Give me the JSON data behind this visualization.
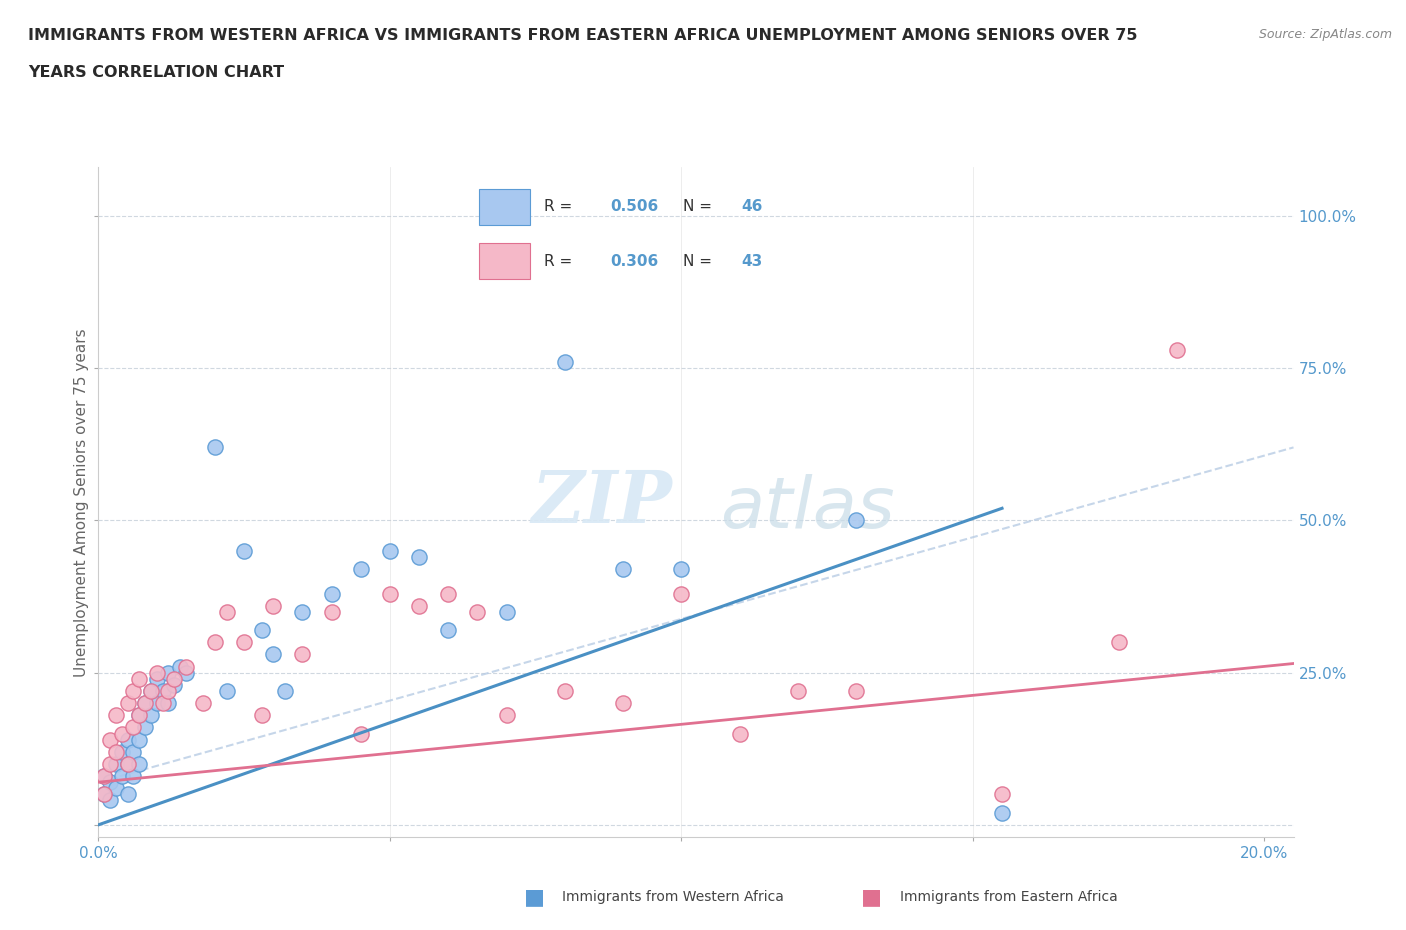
{
  "title_line1": "IMMIGRANTS FROM WESTERN AFRICA VS IMMIGRANTS FROM EASTERN AFRICA UNEMPLOYMENT AMONG SENIORS OVER 75",
  "title_line2": "YEARS CORRELATION CHART",
  "source": "Source: ZipAtlas.com",
  "ylabel": "Unemployment Among Seniors over 75 years",
  "legend_label1": "Immigrants from Western Africa",
  "legend_label2": "Immigrants from Eastern Africa",
  "xlim": [
    0.0,
    0.205
  ],
  "ylim": [
    -0.02,
    1.08
  ],
  "y_ticks": [
    0.0,
    0.25,
    0.5,
    0.75,
    1.0
  ],
  "y_tick_labels": [
    "",
    "25.0%",
    "50.0%",
    "75.0%",
    "100.0%"
  ],
  "x_ticks": [
    0.0,
    0.05,
    0.1,
    0.15,
    0.2
  ],
  "x_tick_labels_show": [
    "0.0%",
    "",
    "",
    "",
    "20.0%"
  ],
  "color_western": "#a8c8f0",
  "color_western_edge": "#5b9bd5",
  "color_eastern": "#f5b8c8",
  "color_eastern_edge": "#e07090",
  "color_western_line": "#4a90c4",
  "color_eastern_line": "#e07090",
  "color_dashed": "#b8cce4",
  "axis_label_color": "#5599cc",
  "grid_color": "#d0d8e0",
  "western_x": [
    0.001,
    0.001,
    0.002,
    0.002,
    0.003,
    0.003,
    0.004,
    0.004,
    0.005,
    0.005,
    0.005,
    0.006,
    0.006,
    0.007,
    0.007,
    0.007,
    0.008,
    0.008,
    0.009,
    0.009,
    0.01,
    0.01,
    0.011,
    0.012,
    0.012,
    0.013,
    0.014,
    0.015,
    0.02,
    0.022,
    0.025,
    0.028,
    0.03,
    0.032,
    0.035,
    0.04,
    0.045,
    0.05,
    0.055,
    0.06,
    0.07,
    0.08,
    0.09,
    0.1,
    0.13,
    0.155
  ],
  "western_y": [
    0.05,
    0.08,
    0.04,
    0.07,
    0.06,
    0.1,
    0.08,
    0.12,
    0.05,
    0.1,
    0.14,
    0.08,
    0.12,
    0.1,
    0.14,
    0.18,
    0.16,
    0.2,
    0.18,
    0.22,
    0.2,
    0.24,
    0.22,
    0.2,
    0.25,
    0.23,
    0.26,
    0.25,
    0.62,
    0.22,
    0.45,
    0.32,
    0.28,
    0.22,
    0.35,
    0.38,
    0.42,
    0.45,
    0.44,
    0.32,
    0.35,
    0.76,
    0.42,
    0.42,
    0.5,
    0.02
  ],
  "eastern_x": [
    0.001,
    0.001,
    0.002,
    0.002,
    0.003,
    0.003,
    0.004,
    0.005,
    0.005,
    0.006,
    0.006,
    0.007,
    0.007,
    0.008,
    0.009,
    0.01,
    0.011,
    0.012,
    0.013,
    0.015,
    0.018,
    0.02,
    0.022,
    0.025,
    0.028,
    0.03,
    0.035,
    0.04,
    0.045,
    0.05,
    0.055,
    0.06,
    0.065,
    0.07,
    0.08,
    0.09,
    0.1,
    0.11,
    0.12,
    0.13,
    0.155,
    0.175,
    0.185
  ],
  "eastern_y": [
    0.05,
    0.08,
    0.1,
    0.14,
    0.12,
    0.18,
    0.15,
    0.1,
    0.2,
    0.16,
    0.22,
    0.18,
    0.24,
    0.2,
    0.22,
    0.25,
    0.2,
    0.22,
    0.24,
    0.26,
    0.2,
    0.3,
    0.35,
    0.3,
    0.18,
    0.36,
    0.28,
    0.35,
    0.15,
    0.38,
    0.36,
    0.38,
    0.35,
    0.18,
    0.22,
    0.2,
    0.38,
    0.15,
    0.22,
    0.22,
    0.05,
    0.3,
    0.78
  ],
  "watermark_zip": "ZIP",
  "watermark_atlas": "atlas",
  "reg_line_w_x0": 0.0,
  "reg_line_w_y0": 0.0,
  "reg_line_w_x1": 0.155,
  "reg_line_w_y1": 0.52,
  "reg_line_e_x0": 0.0,
  "reg_line_e_y0": 0.07,
  "reg_line_e_x1": 0.205,
  "reg_line_e_y1": 0.265,
  "dash_line_x0": 0.0,
  "dash_line_y0": 0.07,
  "dash_line_x1": 0.205,
  "dash_line_y1": 0.62
}
